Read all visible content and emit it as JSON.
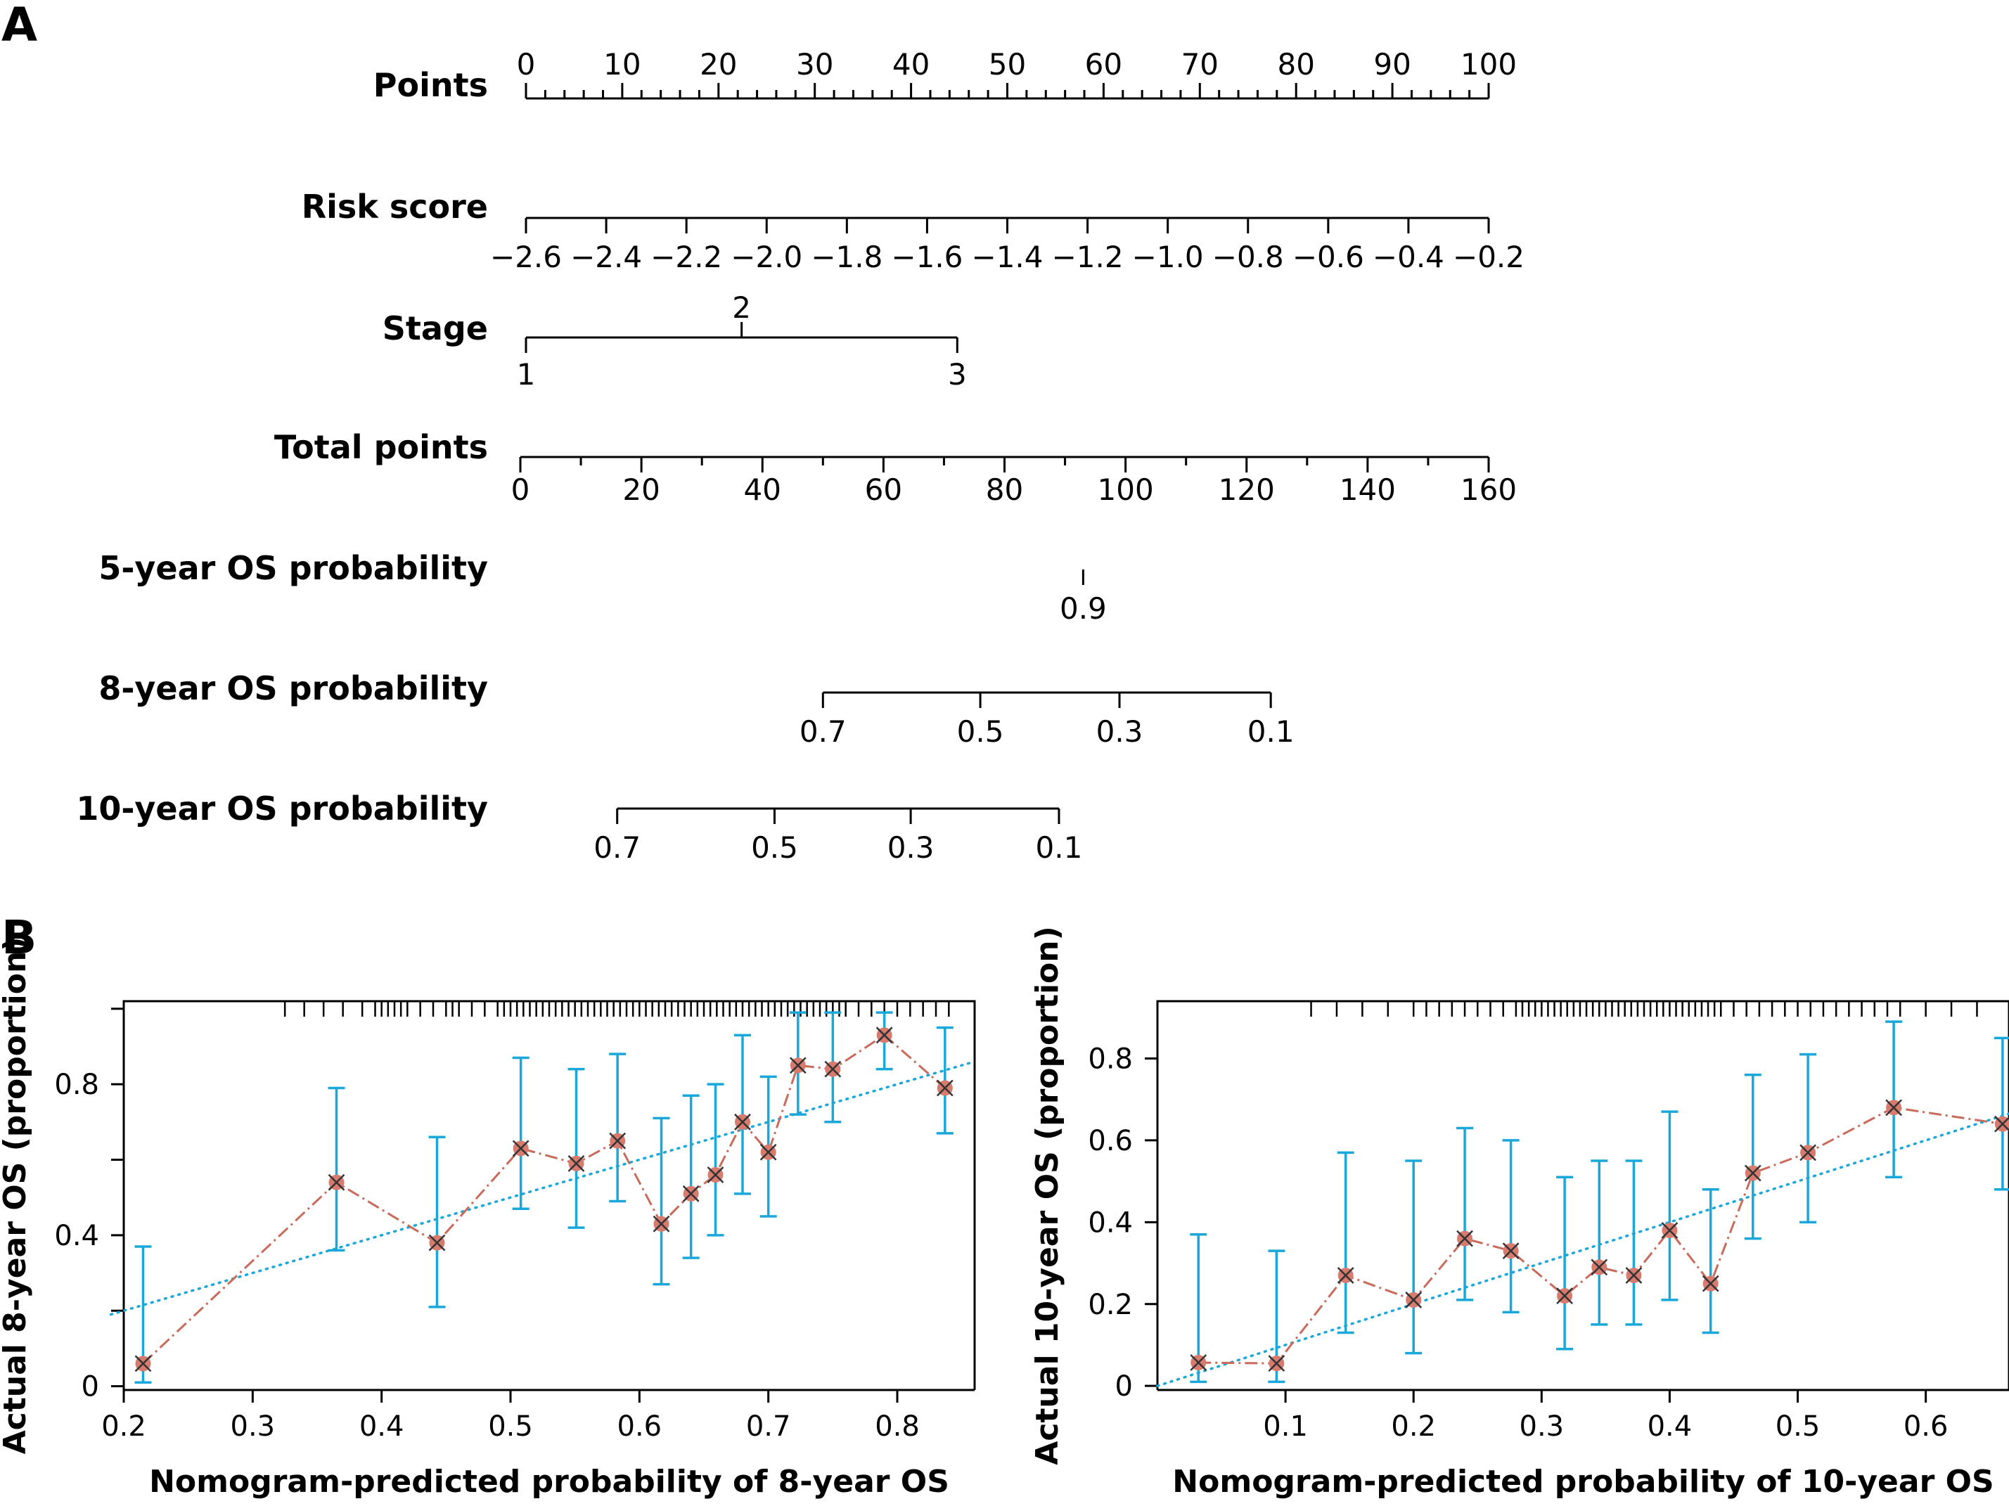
{
  "panels": {
    "a": "A",
    "b": "B"
  },
  "colors": {
    "ink": "#000000",
    "errorbar": "#1aa7d9",
    "line": "#c86b5b",
    "point": "#d77b6e",
    "ideal": "#1aa7d9"
  },
  "chart_data": [
    {
      "type": "nomogram",
      "scales": [
        {
          "label": "Points",
          "ticks_major": [
            0,
            10,
            20,
            30,
            40,
            50,
            60,
            70,
            80,
            90,
            100
          ],
          "range": [
            0,
            100
          ],
          "minor_step": 2,
          "labels_above": true
        },
        {
          "label": "Risk score",
          "ticks_major": [
            "−2.6",
            "−2.4",
            "−2.2",
            "−2.0",
            "−1.8",
            "−1.6",
            "−1.4",
            "−1.2",
            "−1.0",
            "−0.8",
            "−0.6",
            "−0.4",
            "−0.2"
          ],
          "range": [
            -2.6,
            -0.2
          ]
        },
        {
          "label": "Stage",
          "ticks": [
            {
              "label": "1",
              "points": 0,
              "pos": "below"
            },
            {
              "label": "2",
              "points": 22.4,
              "pos": "above"
            },
            {
              "label": "3",
              "points": 44.8,
              "pos": "below"
            }
          ]
        },
        {
          "label": "Total points",
          "ticks_major": [
            0,
            20,
            40,
            60,
            80,
            100,
            120,
            140,
            160
          ],
          "range": [
            0,
            160
          ],
          "minor_step": 10
        },
        {
          "label": "5-year OS probability",
          "ticks": [
            {
              "label": "0.9",
              "total": 93
            }
          ]
        },
        {
          "label": "8-year OS probability",
          "ticks": [
            {
              "label": "0.7",
              "total": 50
            },
            {
              "label": "0.5",
              "total": 76
            },
            {
              "label": "0.3",
              "total": 99
            },
            {
              "label": "0.1",
              "total": 124
            }
          ]
        },
        {
          "label": "10-year OS probability",
          "ticks": [
            {
              "label": "0.7",
              "total": 16
            },
            {
              "label": "0.5",
              "total": 42
            },
            {
              "label": "0.3",
              "total": 64.5
            },
            {
              "label": "0.1",
              "total": 89
            }
          ]
        }
      ]
    },
    {
      "type": "scatter",
      "xlabel": "Nomogram-predicted probability of 8-year OS",
      "ylabel": "Actual 8-year OS (proportion)",
      "xlim": [
        0.2,
        0.86
      ],
      "ylim": [
        -0.01,
        1.02
      ],
      "xticks": [
        "0.2",
        "0.3",
        "0.4",
        "0.5",
        "0.6",
        "0.7",
        "0.8"
      ],
      "yticks": [
        "0",
        "0.4",
        "0.8"
      ],
      "ideal_line": [
        [
          0.19,
          0.19
        ],
        [
          0.86,
          0.86
        ]
      ],
      "rug": [
        0.325,
        0.34,
        0.355,
        0.37,
        0.385,
        0.395,
        0.4,
        0.405,
        0.41,
        0.415,
        0.42,
        0.43,
        0.44,
        0.45,
        0.455,
        0.46,
        0.47,
        0.48,
        0.49,
        0.495,
        0.5,
        0.505,
        0.51,
        0.515,
        0.52,
        0.525,
        0.53,
        0.535,
        0.54,
        0.545,
        0.55,
        0.555,
        0.56,
        0.565,
        0.57,
        0.575,
        0.58,
        0.585,
        0.59,
        0.595,
        0.6,
        0.605,
        0.61,
        0.615,
        0.62,
        0.625,
        0.63,
        0.635,
        0.64,
        0.645,
        0.65,
        0.655,
        0.66,
        0.665,
        0.67,
        0.675,
        0.68,
        0.685,
        0.69,
        0.695,
        0.7,
        0.705,
        0.71,
        0.715,
        0.72,
        0.725,
        0.73,
        0.735,
        0.74,
        0.745,
        0.75,
        0.755,
        0.76,
        0.77,
        0.78,
        0.79,
        0.8,
        0.81,
        0.82,
        0.83,
        0.84
      ],
      "points": [
        {
          "x": 0.215,
          "y": 0.06,
          "lo": 0.01,
          "hi": 0.37
        },
        {
          "x": 0.365,
          "y": 0.54,
          "lo": 0.36,
          "hi": 0.79
        },
        {
          "x": 0.443,
          "y": 0.38,
          "lo": 0.21,
          "hi": 0.66
        },
        {
          "x": 0.508,
          "y": 0.63,
          "lo": 0.47,
          "hi": 0.87
        },
        {
          "x": 0.551,
          "y": 0.59,
          "lo": 0.42,
          "hi": 0.84
        },
        {
          "x": 0.583,
          "y": 0.65,
          "lo": 0.49,
          "hi": 0.88
        },
        {
          "x": 0.617,
          "y": 0.43,
          "lo": 0.27,
          "hi": 0.71
        },
        {
          "x": 0.64,
          "y": 0.51,
          "lo": 0.34,
          "hi": 0.77
        },
        {
          "x": 0.659,
          "y": 0.56,
          "lo": 0.4,
          "hi": 0.8
        },
        {
          "x": 0.68,
          "y": 0.7,
          "lo": 0.51,
          "hi": 0.93
        },
        {
          "x": 0.7,
          "y": 0.62,
          "lo": 0.45,
          "hi": 0.82
        },
        {
          "x": 0.723,
          "y": 0.85,
          "lo": 0.72,
          "hi": 0.99
        },
        {
          "x": 0.75,
          "y": 0.84,
          "lo": 0.7,
          "hi": 0.99
        },
        {
          "x": 0.79,
          "y": 0.93,
          "lo": 0.84,
          "hi": 0.99
        },
        {
          "x": 0.837,
          "y": 0.79,
          "lo": 0.67,
          "hi": 0.95
        }
      ]
    },
    {
      "type": "scatter",
      "xlabel": "Nomogram-predicted probability of 10-year OS",
      "ylabel": "Actual 10-year OS (proportion)",
      "xlim": [
        0.0,
        0.665
      ],
      "ylim": [
        -0.01,
        0.94
      ],
      "xticks": [
        "0.1",
        "0.2",
        "0.3",
        "0.4",
        "0.5",
        "0.6"
      ],
      "yticks": [
        "0",
        "0.2",
        "0.4",
        "0.6",
        "0.8"
      ],
      "ideal_line": [
        [
          0.0,
          0.0
        ],
        [
          0.665,
          0.665
        ]
      ],
      "rug": [
        0.12,
        0.14,
        0.16,
        0.18,
        0.2,
        0.21,
        0.22,
        0.23,
        0.24,
        0.25,
        0.26,
        0.27,
        0.28,
        0.285,
        0.29,
        0.295,
        0.3,
        0.305,
        0.31,
        0.315,
        0.32,
        0.325,
        0.33,
        0.335,
        0.34,
        0.345,
        0.35,
        0.355,
        0.36,
        0.365,
        0.37,
        0.375,
        0.38,
        0.385,
        0.39,
        0.395,
        0.4,
        0.405,
        0.41,
        0.415,
        0.42,
        0.425,
        0.43,
        0.435,
        0.44,
        0.45,
        0.46,
        0.47,
        0.48,
        0.49,
        0.5,
        0.51,
        0.52,
        0.53,
        0.54,
        0.55,
        0.56,
        0.57,
        0.58,
        0.6,
        0.62,
        0.64
      ],
      "points": [
        {
          "x": 0.032,
          "y": 0.057,
          "lo": 0.01,
          "hi": 0.37
        },
        {
          "x": 0.093,
          "y": 0.055,
          "lo": 0.01,
          "hi": 0.33
        },
        {
          "x": 0.147,
          "y": 0.27,
          "lo": 0.13,
          "hi": 0.57
        },
        {
          "x": 0.2,
          "y": 0.21,
          "lo": 0.08,
          "hi": 0.55
        },
        {
          "x": 0.24,
          "y": 0.36,
          "lo": 0.21,
          "hi": 0.63
        },
        {
          "x": 0.276,
          "y": 0.33,
          "lo": 0.18,
          "hi": 0.6
        },
        {
          "x": 0.318,
          "y": 0.22,
          "lo": 0.09,
          "hi": 0.51
        },
        {
          "x": 0.345,
          "y": 0.29,
          "lo": 0.15,
          "hi": 0.55
        },
        {
          "x": 0.372,
          "y": 0.27,
          "lo": 0.15,
          "hi": 0.55
        },
        {
          "x": 0.4,
          "y": 0.38,
          "lo": 0.21,
          "hi": 0.67
        },
        {
          "x": 0.432,
          "y": 0.25,
          "lo": 0.13,
          "hi": 0.48
        },
        {
          "x": 0.465,
          "y": 0.52,
          "lo": 0.36,
          "hi": 0.76
        },
        {
          "x": 0.508,
          "y": 0.57,
          "lo": 0.4,
          "hi": 0.81
        },
        {
          "x": 0.575,
          "y": 0.68,
          "lo": 0.51,
          "hi": 0.89
        },
        {
          "x": 0.66,
          "y": 0.64,
          "lo": 0.48,
          "hi": 0.85
        }
      ]
    }
  ]
}
